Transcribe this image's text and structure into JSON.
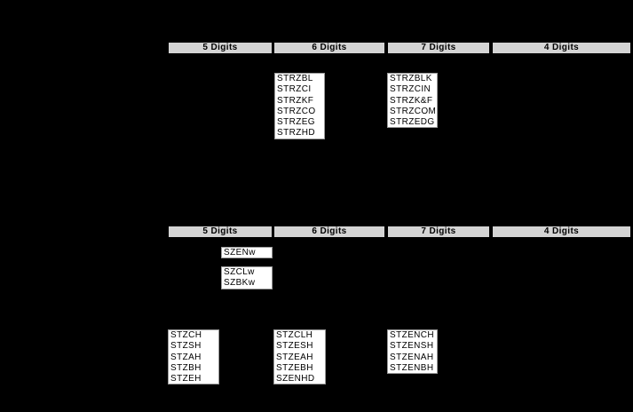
{
  "palette": {
    "page_bg": "#000000",
    "header_bg": "#d4d4d4",
    "header_border": "#000000",
    "box_bg": "#ffffff",
    "box_border": "#9a9a9a",
    "text_color": "#000000"
  },
  "top_section": {
    "headers": {
      "col5": "5 Digits",
      "col6": "6 Digits",
      "col7": "7 Digits",
      "col4": "4 Digits"
    },
    "codes_6digit": [
      "STRZBL",
      "STRZCI",
      "STRZKF",
      "STRZCO",
      "STRZEG",
      "STRZHD"
    ],
    "codes_7digit": [
      "STRZBLK",
      "STRZCIN",
      "STRZK&F",
      "STRZCOM",
      "STRZEDG"
    ]
  },
  "bottom_section": {
    "headers": {
      "col5": "5 Digits",
      "col6": "6 Digits",
      "col7": "7 Digits",
      "col4": "4 Digits"
    },
    "codes_szen": [
      "SZENw"
    ],
    "codes_szcl": [
      "SZCLw",
      "SZBKw"
    ],
    "codes_5digit": [
      "STZCH",
      "STZSH",
      "STZAH",
      "STZBH",
      "STZEH"
    ],
    "codes_6digit": [
      "STZCLH",
      "STZESH",
      "STZEAH",
      "STZEBH",
      "SZENHD"
    ],
    "codes_7digit": [
      "STZENCH",
      "STZENSH",
      "STZENAH",
      "STZENBH"
    ]
  }
}
